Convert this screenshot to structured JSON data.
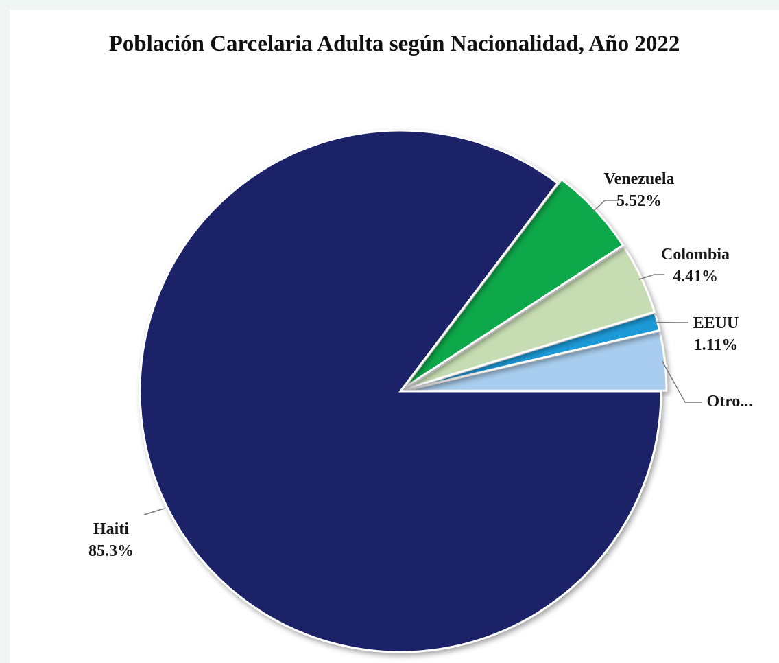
{
  "chart_data": {
    "type": "pie",
    "title": "Población Carcelaria Adulta según Nacionalidad, Año 2022",
    "slices": [
      {
        "label": "Haiti",
        "value_text": "85.3%",
        "value": 85.3,
        "color": "#1a2167"
      },
      {
        "label": "Venezuela",
        "value_text": "5.52%",
        "value": 5.52,
        "color": "#0aa84a"
      },
      {
        "label": "Colombia",
        "value_text": "4.41%",
        "value": 4.41,
        "color": "#c6dcb2"
      },
      {
        "label": "EEUU",
        "value_text": "1.11%",
        "value": 1.11,
        "color": "#1e9ad8"
      },
      {
        "label": "Otro...",
        "value_text": "",
        "value": 3.66,
        "color": "#a9cdee"
      }
    ],
    "legend": "none"
  }
}
